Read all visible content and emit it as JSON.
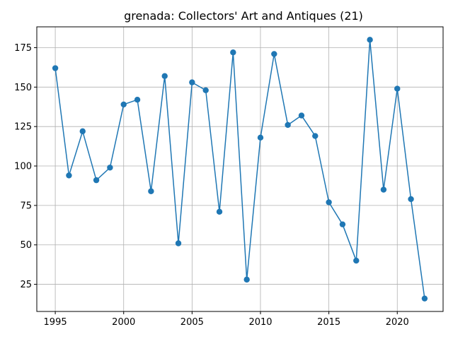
{
  "chart_data": {
    "type": "line",
    "title": "grenada: Collectors' Art and Antiques (21)",
    "xlabel": "",
    "ylabel": "",
    "x": [
      1995,
      1996,
      1997,
      1998,
      1999,
      2000,
      2001,
      2002,
      2003,
      2004,
      2005,
      2006,
      2007,
      2008,
      2009,
      2010,
      2011,
      2012,
      2013,
      2014,
      2015,
      2016,
      2017,
      2018,
      2019,
      2020,
      2021,
      2022
    ],
    "series": [
      {
        "name": "",
        "color": "#1f77b4",
        "values": [
          162,
          94,
          122,
          91,
          99,
          139,
          142,
          84,
          157,
          51,
          153,
          148,
          71,
          172,
          28,
          118,
          171,
          126,
          132,
          119,
          77,
          63,
          40,
          180,
          85,
          149,
          79,
          16
        ]
      }
    ],
    "xlim": [
      1993.65,
      2023.35
    ],
    "ylim": [
      7.8,
      188.2
    ],
    "xticks": [
      1995,
      2000,
      2005,
      2010,
      2015,
      2020
    ],
    "yticks": [
      25,
      50,
      75,
      100,
      125,
      150,
      175
    ],
    "grid": true,
    "marker": "circle"
  }
}
